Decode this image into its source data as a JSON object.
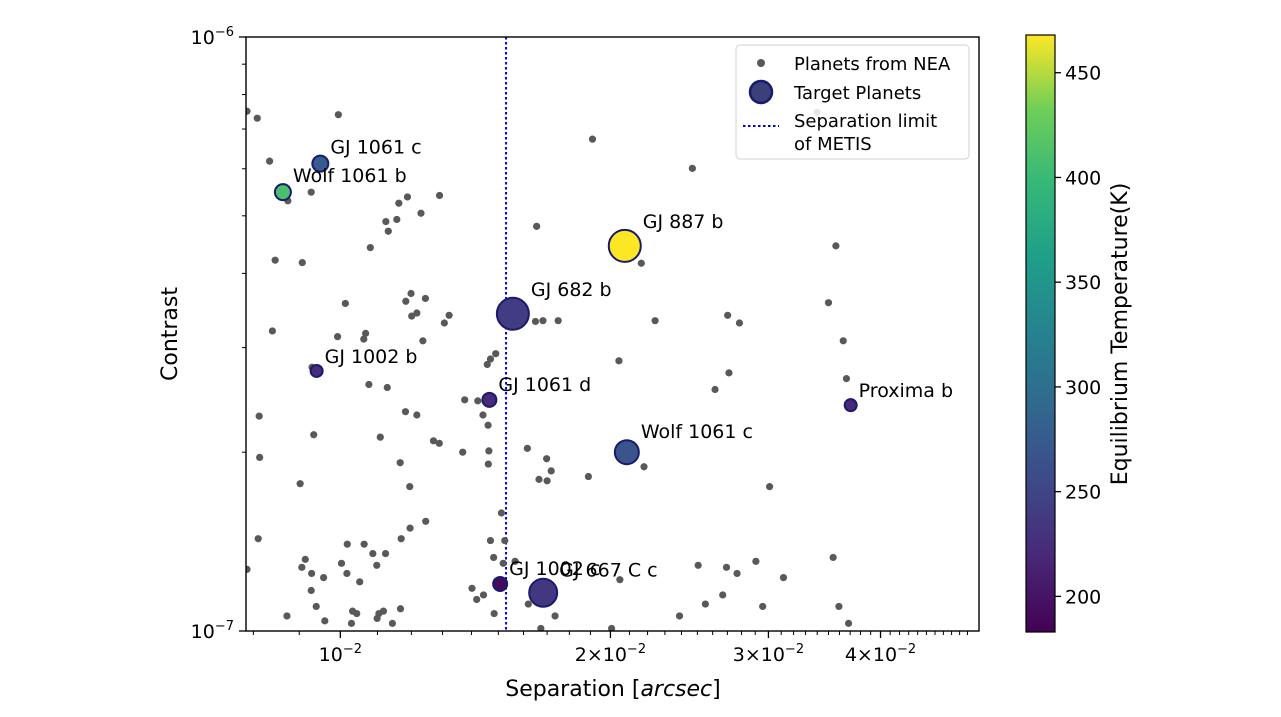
{
  "chart_data": {
    "type": "scatter",
    "xlabel": "Separation [",
    "xlabel_italic": "arcsec",
    "xlabel_end": "]",
    "ylabel": "Contrast",
    "x_scale": "log",
    "y_scale": "log",
    "xlim": [
      0.00785,
      0.0515
    ],
    "ylim": [
      1e-07,
      1e-06
    ],
    "grid": false,
    "legend_placement": "upper-right",
    "x_tick_labels": [
      {
        "value": 0.01,
        "base": "10",
        "exp": "−2"
      },
      {
        "value": 0.02,
        "base": "2×10",
        "exp": "−2"
      },
      {
        "value": 0.03,
        "base": "3×10",
        "exp": "−2"
      },
      {
        "value": 0.04,
        "base": "4×10",
        "exp": "−2"
      }
    ],
    "y_tick_labels": [
      {
        "value": 1e-06,
        "base": "10",
        "exp": "−6"
      },
      {
        "value": 1e-07,
        "base": "10",
        "exp": "−7"
      }
    ],
    "legend": {
      "nea": "Planets from NEA",
      "target": "Target Planets",
      "limit_line1": "Separation limit",
      "limit_line2": "of METIS"
    },
    "separation_limit_x": 0.0153,
    "colorbar": {
      "label": "Equilibrium Temperature(K)",
      "min": 183,
      "max": 468,
      "colormap": "viridis",
      "ticks": [
        200,
        250,
        300,
        350,
        400,
        450
      ]
    },
    "series": [
      {
        "name": "Planets from NEA",
        "color": "#595959",
        "points": [
          [
            0.00787,
            7.5e-07
          ],
          [
            0.00808,
            7.3e-07
          ],
          [
            0.00834,
            6.18e-07
          ],
          [
            0.00846,
            4.21e-07
          ],
          [
            0.0084,
            3.2e-07
          ],
          [
            0.00812,
            2.3e-07
          ],
          [
            0.00813,
            1.96e-07
          ],
          [
            0.0081,
            1.43e-07
          ],
          [
            0.00787,
            1.27e-07
          ],
          [
            0.00872,
            1.06e-07
          ],
          [
            0.00874,
            5.3e-07
          ],
          [
            0.00907,
            4.17e-07
          ],
          [
            0.00928,
            5.48e-07
          ],
          [
            0.00958,
            6.12e-07
          ],
          [
            0.00995,
            7.4e-07
          ],
          [
            0.01013,
            3.56e-07
          ],
          [
            0.00993,
            3.13e-07
          ],
          [
            0.0093,
            2.78e-07
          ],
          [
            0.00934,
            2.14e-07
          ],
          [
            0.00902,
            1.77e-07
          ],
          [
            0.00914,
            1.32e-07
          ],
          [
            0.00929,
            1.25e-07
          ],
          [
            0.00958,
            1.23e-07
          ],
          [
            0.00928,
            1.17e-07
          ],
          [
            0.0094,
            1.1e-07
          ],
          [
            0.00961,
            1.04e-07
          ],
          [
            0.00906,
            1.28e-07
          ],
          [
            0.01018,
            1.4e-07
          ],
          [
            0.01003,
            1.3e-07
          ],
          [
            0.01017,
            1.25e-07
          ],
          [
            0.01051,
            1.21e-07
          ],
          [
            0.01032,
            1.08e-07
          ],
          [
            0.01043,
            1.07e-07
          ],
          [
            0.01029,
            1.03e-07
          ],
          [
            0.01063,
            1.4e-07
          ],
          [
            0.01087,
            1.35e-07
          ],
          [
            0.01098,
            1.29e-07
          ],
          [
            0.01123,
            1.35e-07
          ],
          [
            0.01104,
            1.07e-07
          ],
          [
            0.01117,
            1.08e-07
          ],
          [
            0.01099,
            1.05e-07
          ],
          [
            0.01167,
            1.09e-07
          ],
          [
            0.01143,
            1.03e-07
          ],
          [
            0.01169,
            1.43e-07
          ],
          [
            0.01196,
            1.49e-07
          ],
          [
            0.01245,
            1.53e-07
          ],
          [
            0.01195,
            1.75e-07
          ],
          [
            0.01166,
            1.92e-07
          ],
          [
            0.01108,
            2.12e-07
          ],
          [
            0.01076,
            2.6e-07
          ],
          [
            0.01062,
            3.1e-07
          ],
          [
            0.01067,
            3.17e-07
          ],
          [
            0.0108,
            4.42e-07
          ],
          [
            0.01131,
            4.71e-07
          ],
          [
            0.01124,
            4.89e-07
          ],
          [
            0.01156,
            4.93e-07
          ],
          [
            0.01188,
            5.38e-07
          ],
          [
            0.01162,
            5.25e-07
          ],
          [
            0.0123,
            5.05e-07
          ],
          [
            0.0129,
            5.41e-07
          ],
          [
            0.01306,
            3.3e-07
          ],
          [
            0.01322,
            3.4e-07
          ],
          [
            0.01183,
            3.59e-07
          ],
          [
            0.01199,
            3.7e-07
          ],
          [
            0.01244,
            3.63e-07
          ],
          [
            0.01236,
            3.08e-07
          ],
          [
            0.01217,
            3.43e-07
          ],
          [
            0.01201,
            3.39e-07
          ],
          [
            0.01128,
            2.57e-07
          ],
          [
            0.01182,
            2.34e-07
          ],
          [
            0.01217,
            2.31e-07
          ],
          [
            0.0127,
            2.09e-07
          ],
          [
            0.01289,
            2.07e-07
          ],
          [
            0.01369,
            2e-07
          ],
          [
            0.01376,
            2.45e-07
          ],
          [
            0.01423,
            2.44e-07
          ],
          [
            0.01442,
            2.31e-07
          ],
          [
            0.01458,
            2.81e-07
          ],
          [
            0.0147,
            2.87e-07
          ],
          [
            0.0149,
            2.93e-07
          ],
          [
            0.01461,
            2.22e-07
          ],
          [
            0.01464,
            2.01e-07
          ],
          [
            0.01462,
            1.91e-07
          ],
          [
            0.01512,
            1.58e-07
          ],
          [
            0.0147,
            1.42e-07
          ],
          [
            0.01525,
            1.42e-07
          ],
          [
            0.01482,
            1.33e-07
          ],
          [
            0.01519,
            1.3e-07
          ],
          [
            0.01402,
            1.18e-07
          ],
          [
            0.01444,
            1.15e-07
          ],
          [
            0.01419,
            1.13e-07
          ],
          [
            0.01484,
            1.07e-07
          ],
          [
            0.01566,
            1.31e-07
          ],
          [
            0.01616,
            2.03e-07
          ],
          [
            0.01698,
            1.95e-07
          ],
          [
            0.017,
            1.79e-07
          ],
          [
            0.01665,
            1.8e-07
          ],
          [
            0.01718,
            1.86e-07
          ],
          [
            0.0165,
            3.32e-07
          ],
          [
            0.01682,
            3.33e-07
          ],
          [
            0.01749,
            3.33e-07
          ],
          [
            0.01655,
            4.8e-07
          ],
          [
            0.0162,
            1.11e-07
          ],
          [
            0.0169,
            1.13e-07
          ],
          [
            0.01673,
            1.01e-07
          ],
          [
            0.01735,
            1.06e-07
          ],
          [
            0.0189,
            1.82e-07
          ],
          [
            0.0191,
            6.73e-07
          ],
          [
            0.02006,
            1.01e-07
          ],
          [
            0.02049,
            1.22e-07
          ],
          [
            0.02044,
            2.85e-07
          ],
          [
            0.02165,
            4.16e-07
          ],
          [
            0.02243,
            3.33e-07
          ],
          [
            0.0218,
            1.89e-07
          ],
          [
            0.02388,
            1.06e-07
          ],
          [
            0.02505,
            1.29e-07
          ],
          [
            0.02468,
            6.01e-07
          ],
          [
            0.02616,
            2.55e-07
          ],
          [
            0.02552,
            1.11e-07
          ],
          [
            0.02668,
            1.15e-07
          ],
          [
            0.02694,
            1.28e-07
          ],
          [
            0.02711,
            2.72e-07
          ],
          [
            0.02702,
            3.4e-07
          ],
          [
            0.02785,
            3.3e-07
          ],
          [
            0.02956,
            1.1e-07
          ],
          [
            0.03118,
            1.23e-07
          ],
          [
            0.03009,
            1.75e-07
          ],
          [
            0.02905,
            1.31e-07
          ],
          [
            0.02768,
            1.25e-07
          ],
          [
            0.034,
            7.47e-07
          ],
          [
            0.035,
            3.57e-07
          ],
          [
            0.03567,
            4.45e-07
          ],
          [
            0.03595,
            1.1e-07
          ],
          [
            0.03685,
            1.03e-07
          ],
          [
            0.03542,
            1.33e-07
          ],
          [
            0.03635,
            3.08e-07
          ],
          [
            0.03665,
            2.66e-07
          ]
        ]
      },
      {
        "name": "Target Planets",
        "points": [
          {
            "label": "GJ 1061 c",
            "x": 0.0095,
            "y": 6.12e-07,
            "temp": 275,
            "size": 8
          },
          {
            "label": "Wolf 1061 b",
            "x": 0.00863,
            "y": 5.48e-07,
            "temp": 410,
            "size": 8
          },
          {
            "label": "GJ 887 b",
            "x": 0.02075,
            "y": 4.45e-07,
            "temp": 468,
            "size": 16
          },
          {
            "label": "GJ 682 b",
            "x": 0.01557,
            "y": 3.42e-07,
            "temp": 240,
            "size": 16
          },
          {
            "label": "GJ 1002 b",
            "x": 0.00941,
            "y": 2.74e-07,
            "temp": 225,
            "size": 6
          },
          {
            "label": "GJ 1061 d",
            "x": 0.01466,
            "y": 2.45e-07,
            "temp": 222,
            "size": 7
          },
          {
            "label": "Proxima b",
            "x": 0.03705,
            "y": 2.4e-07,
            "temp": 220,
            "size": 6
          },
          {
            "label": "Wolf 1061 c",
            "x": 0.02086,
            "y": 2e-07,
            "temp": 268,
            "size": 12
          },
          {
            "label": "GJ 1002 c",
            "x": 0.01507,
            "y": 1.2e-07,
            "temp": 190,
            "size": 7
          },
          {
            "label": "GJ 667 C c",
            "x": 0.01683,
            "y": 1.16e-07,
            "temp": 235,
            "size": 14
          }
        ]
      }
    ]
  }
}
